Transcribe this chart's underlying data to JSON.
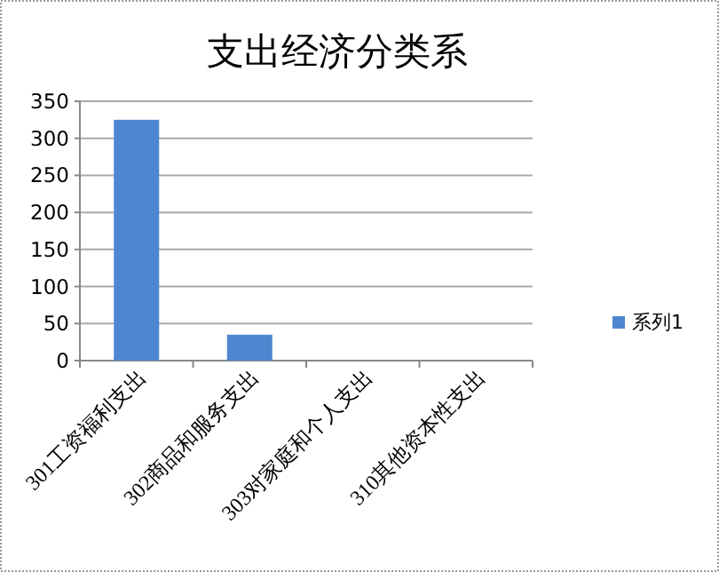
{
  "chart_data": {
    "type": "bar",
    "title": "支出经济分类系",
    "categories": [
      "301工资福利支出",
      "302商品和服务支出",
      "303对家庭和个人支出",
      "310其他资本性支出"
    ],
    "series": [
      {
        "name": "系列1",
        "color": "#4f86d0",
        "values": [
          325,
          35,
          0,
          0
        ]
      }
    ],
    "ylim": [
      0,
      350
    ],
    "yticks": [
      0,
      50,
      100,
      150,
      200,
      250,
      300,
      350
    ],
    "grid": "y",
    "legend": "right"
  }
}
